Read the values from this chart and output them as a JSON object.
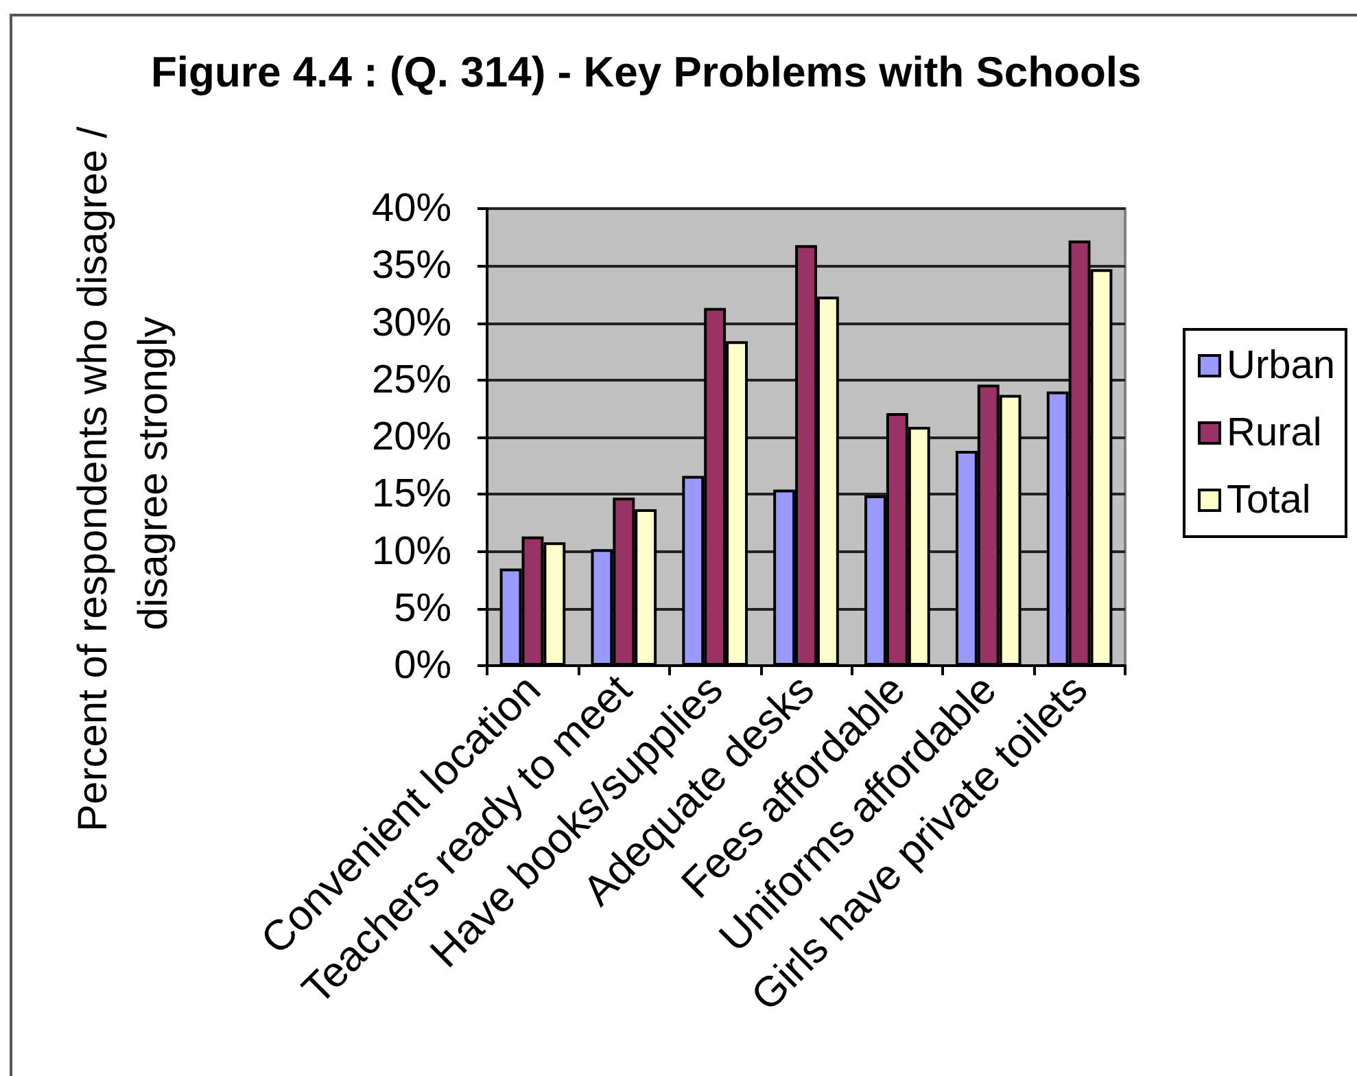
{
  "chart_data": {
    "type": "bar",
    "title": "Figure 4.4 : (Q. 314) - Key Problems with Schools",
    "ylabel": "Percent of respondents who disagree / disagree strongly",
    "categories": [
      "Convenient location",
      "Teachers ready to meet",
      "Have books/supplies",
      "Adequate desks",
      "Fees affordable",
      "Uniforms affordable",
      "Girls have private toilets"
    ],
    "series": [
      {
        "name": "Urban",
        "color": "#9999ff",
        "values": [
          8.5,
          10.2,
          16.6,
          15.4,
          14.9,
          18.8,
          24.0
        ]
      },
      {
        "name": "Rural",
        "color": "#993366",
        "values": [
          11.3,
          14.7,
          31.3,
          36.8,
          22.1,
          24.6,
          37.2
        ]
      },
      {
        "name": "Total",
        "color": "#ffffcc",
        "values": [
          10.8,
          13.7,
          28.4,
          32.3,
          20.9,
          23.7,
          34.7
        ]
      }
    ],
    "ylim": [
      0,
      40
    ],
    "yticks": [
      {
        "value": 0,
        "label": "0%"
      },
      {
        "value": 5,
        "label": "5%"
      },
      {
        "value": 10,
        "label": "10%"
      },
      {
        "value": 15,
        "label": "15%"
      },
      {
        "value": 20,
        "label": "20%"
      },
      {
        "value": 25,
        "label": "25%"
      },
      {
        "value": 30,
        "label": "30%"
      },
      {
        "value": 35,
        "label": "35%"
      },
      {
        "value": 40,
        "label": "40%"
      }
    ],
    "grid": "y",
    "legend": "right"
  }
}
